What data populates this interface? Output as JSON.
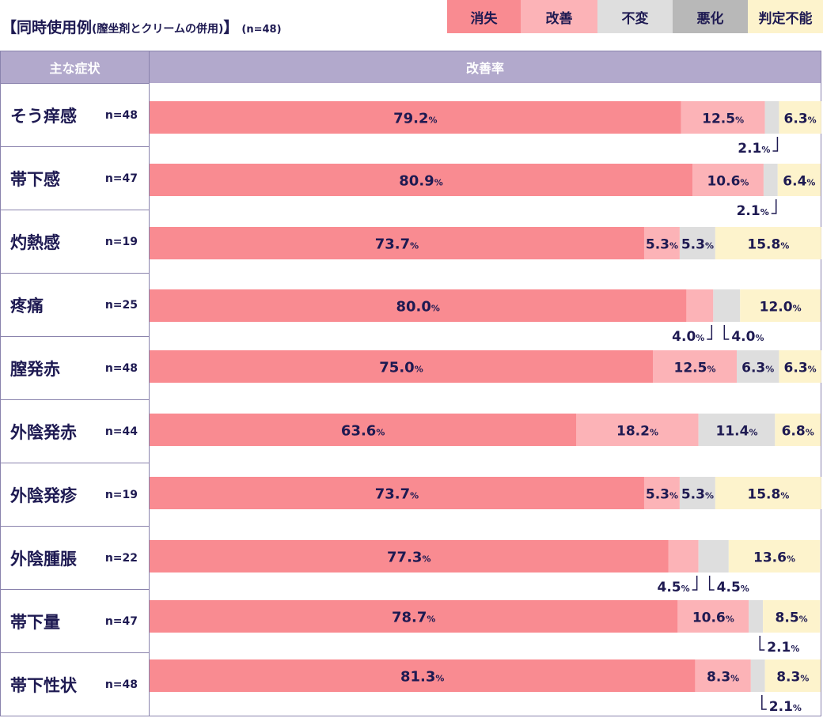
{
  "title": {
    "main": "【同時使用例",
    "sub": "(膣坐剤とクリームの併用)",
    "close": "】",
    "n": "(n=48)"
  },
  "legend": [
    {
      "label": "消失",
      "color": "#f98b91"
    },
    {
      "label": "改善",
      "color": "#fcb3b7"
    },
    {
      "label": "不変",
      "color": "#dedede"
    },
    {
      "label": "悪化",
      "color": "#b8b8b8"
    },
    {
      "label": "判定不能",
      "color": "#fdf3cc"
    }
  ],
  "headers": {
    "symptom": "主な症状",
    "rate": "改善率"
  },
  "unit": "%",
  "chart_data": {
    "type": "bar",
    "orientation": "horizontal",
    "stacked": true,
    "title": "同時使用例(膣坐剤とクリームの併用)",
    "categories": [
      "そう痒感",
      "帯下感",
      "灼熱感",
      "疼痛",
      "膣発赤",
      "外陰発赤",
      "外陰発疹",
      "外陰腫脹",
      "帯下量",
      "帯下性状"
    ],
    "n": [
      "n=48",
      "n=47",
      "n=19",
      "n=25",
      "n=48",
      "n=44",
      "n=19",
      "n=22",
      "n=47",
      "n=48"
    ],
    "series": [
      {
        "name": "消失",
        "values": [
          79.2,
          80.9,
          73.7,
          80.0,
          75.0,
          63.6,
          73.7,
          77.3,
          78.7,
          81.3
        ]
      },
      {
        "name": "改善",
        "values": [
          12.5,
          10.6,
          5.3,
          4.0,
          12.5,
          18.2,
          5.3,
          4.5,
          10.6,
          8.3
        ]
      },
      {
        "name": "不変",
        "values": [
          2.1,
          2.1,
          5.3,
          4.0,
          6.3,
          11.4,
          5.3,
          4.5,
          2.1,
          2.1
        ]
      },
      {
        "name": "悪化",
        "values": [
          0,
          0,
          0,
          0,
          0,
          0,
          0,
          0,
          0,
          0
        ]
      },
      {
        "name": "判定不能",
        "values": [
          6.3,
          6.4,
          15.8,
          12.0,
          6.3,
          6.8,
          15.8,
          13.6,
          8.5,
          8.3
        ]
      }
    ],
    "xlim": [
      0,
      100
    ],
    "label_texts": [
      [
        "79.2",
        "12.5",
        "2.1",
        "",
        "6.3"
      ],
      [
        "80.9",
        "10.6",
        "2.1",
        "",
        "6.4"
      ],
      [
        "73.7",
        "5.3",
        "5.3",
        "",
        "15.8"
      ],
      [
        "80.0",
        "4.0",
        "4.0",
        "",
        "12.0"
      ],
      [
        "75.0",
        "12.5",
        "6.3",
        "",
        "6.3"
      ],
      [
        "63.6",
        "18.2",
        "11.4",
        "",
        "6.8"
      ],
      [
        "73.7",
        "5.3",
        "5.3",
        "",
        "15.8"
      ],
      [
        "77.3",
        "4.5",
        "4.5",
        "",
        "13.6"
      ],
      [
        "78.7",
        "10.6",
        "2.1",
        "",
        "8.5"
      ],
      [
        "81.3",
        "8.3",
        "2.1",
        "",
        "8.3"
      ]
    ]
  }
}
